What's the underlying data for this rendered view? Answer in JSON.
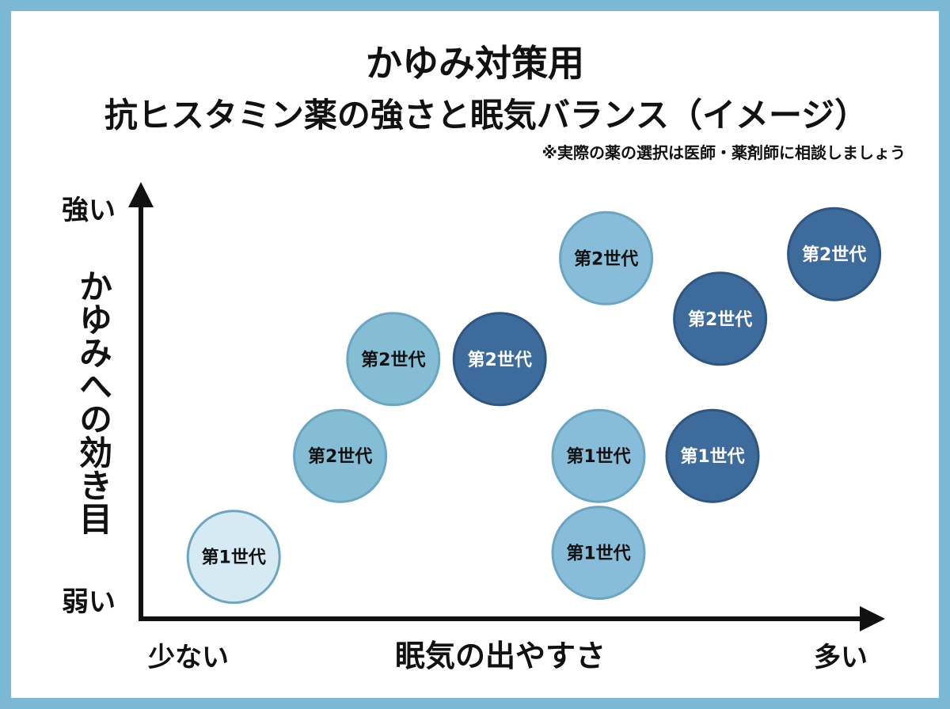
{
  "header": {
    "title": "かゆみ対策用",
    "subtitle": "抗ヒスタミン薬の強さと眠気バランス（イメージ）",
    "note": "※実際の薬の選択は医師・薬剤師に相談しましょう"
  },
  "chart_data": {
    "type": "scatter",
    "xlabel": "眠気の出やすさ",
    "ylabel": "かゆみへの効き目",
    "x_tick_labels": {
      "min": "少ない",
      "max": "多い"
    },
    "y_tick_labels": {
      "min": "弱い",
      "max": "強い"
    },
    "xlim": [
      0,
      10
    ],
    "ylim": [
      0,
      10
    ],
    "legend": "none",
    "points": [
      {
        "label": "第1世代",
        "x": 1.2,
        "y": 1.3,
        "color": "#d6eaf3"
      },
      {
        "label": "第2世代",
        "x": 2.6,
        "y": 3.8,
        "color": "#85bdd4"
      },
      {
        "label": "第2世代",
        "x": 3.3,
        "y": 6.2,
        "color": "#85bdd4"
      },
      {
        "label": "第2世代",
        "x": 4.7,
        "y": 6.2,
        "color": "#3d6b9b"
      },
      {
        "label": "第2世代",
        "x": 6.1,
        "y": 8.7,
        "color": "#88bdd9"
      },
      {
        "label": "第1世代",
        "x": 6.0,
        "y": 3.8,
        "color": "#88bdd9"
      },
      {
        "label": "第1世代",
        "x": 6.0,
        "y": 1.4,
        "color": "#88bdd9"
      },
      {
        "label": "第1世代",
        "x": 7.5,
        "y": 3.8,
        "color": "#3d6b9b"
      },
      {
        "label": "第2世代",
        "x": 7.6,
        "y": 7.2,
        "color": "#3d6b9b"
      },
      {
        "label": "第2世代",
        "x": 9.1,
        "y": 8.8,
        "color": "#3d6b9b"
      }
    ]
  }
}
